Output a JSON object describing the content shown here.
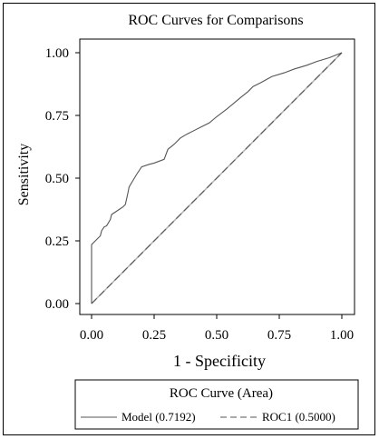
{
  "chart_data": {
    "type": "line",
    "title": "ROC Curves for Comparisons",
    "xlabel": "1 - Specificity",
    "ylabel": "Sensitivity",
    "xlim": [
      0,
      1
    ],
    "ylim": [
      0,
      1
    ],
    "x_ticks": [
      "0.00",
      "0.25",
      "0.50",
      "0.75",
      "1.00"
    ],
    "y_ticks": [
      "0.00",
      "0.25",
      "0.50",
      "0.75",
      "1.00"
    ],
    "grid": false,
    "legend": {
      "title": "ROC Curve (Area)",
      "placement": "bottom",
      "entries": [
        {
          "label": "Model (0.7192)",
          "style": "solid"
        },
        {
          "label": "ROC1 (0.5000)",
          "style": "dashed"
        }
      ]
    },
    "series": [
      {
        "name": "Model (0.7192)",
        "style": "solid",
        "color": "#555555",
        "points": [
          [
            0.0,
            0.0
          ],
          [
            0.0,
            0.235
          ],
          [
            0.02,
            0.255
          ],
          [
            0.035,
            0.27
          ],
          [
            0.04,
            0.29
          ],
          [
            0.05,
            0.305
          ],
          [
            0.06,
            0.31
          ],
          [
            0.075,
            0.335
          ],
          [
            0.08,
            0.355
          ],
          [
            0.095,
            0.365
          ],
          [
            0.11,
            0.375
          ],
          [
            0.125,
            0.385
          ],
          [
            0.135,
            0.395
          ],
          [
            0.145,
            0.44
          ],
          [
            0.15,
            0.465
          ],
          [
            0.165,
            0.49
          ],
          [
            0.18,
            0.515
          ],
          [
            0.2,
            0.545
          ],
          [
            0.23,
            0.555
          ],
          [
            0.25,
            0.56
          ],
          [
            0.29,
            0.575
          ],
          [
            0.305,
            0.615
          ],
          [
            0.33,
            0.635
          ],
          [
            0.355,
            0.66
          ],
          [
            0.38,
            0.675
          ],
          [
            0.41,
            0.69
          ],
          [
            0.44,
            0.705
          ],
          [
            0.47,
            0.72
          ],
          [
            0.5,
            0.745
          ],
          [
            0.54,
            0.775
          ],
          [
            0.57,
            0.8
          ],
          [
            0.6,
            0.825
          ],
          [
            0.625,
            0.845
          ],
          [
            0.645,
            0.865
          ],
          [
            0.675,
            0.88
          ],
          [
            0.72,
            0.905
          ],
          [
            0.77,
            0.92
          ],
          [
            0.81,
            0.935
          ],
          [
            0.86,
            0.95
          ],
          [
            0.9,
            0.965
          ],
          [
            0.95,
            0.98
          ],
          [
            1.0,
            1.0
          ]
        ]
      },
      {
        "name": "ROC1 (0.5000)",
        "style": "dashed",
        "color": "#555555",
        "points": [
          [
            0,
            0
          ],
          [
            1,
            1
          ]
        ]
      }
    ]
  },
  "colors": {
    "frame": "#000000",
    "axis": "#000000",
    "reference_line": "#b0b0b0",
    "curve": "#555555"
  }
}
